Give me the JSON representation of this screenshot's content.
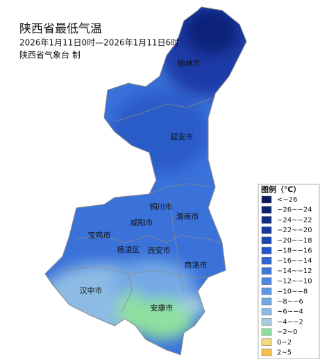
{
  "header": {
    "title": "陕西省最低气温",
    "period": "2026年1月11日0时—2026年1月11日6时",
    "issuer": "陕西省气象台  制"
  },
  "cities": [
    {
      "label": "榆林市"
    },
    {
      "label": "延安市"
    },
    {
      "label": "铜川市"
    },
    {
      "label": "咸阳市"
    },
    {
      "label": "渭南市"
    },
    {
      "label": "宝鸡市"
    },
    {
      "label": "杨凌区"
    },
    {
      "label": "西安市"
    },
    {
      "label": "商洛市"
    },
    {
      "label": "汉中市"
    },
    {
      "label": "安康市"
    }
  ],
  "legend": {
    "title": "图例（℃）",
    "items": [
      {
        "label": "<−26",
        "color": "#0a1a5c"
      },
      {
        "label": "−26~−24",
        "color": "#0d2270"
      },
      {
        "label": "−24~−22",
        "color": "#112c88"
      },
      {
        "label": "−22~−20",
        "color": "#15389f"
      },
      {
        "label": "−20~−18",
        "color": "#1a46b5"
      },
      {
        "label": "−18~−16",
        "color": "#2255c6"
      },
      {
        "label": "−16~−14",
        "color": "#2e66d1"
      },
      {
        "label": "−14~−12",
        "color": "#3c78dc"
      },
      {
        "label": "−12~−10",
        "color": "#4a88e4"
      },
      {
        "label": "−10~−8",
        "color": "#5c98e6"
      },
      {
        "label": "−8~−6",
        "color": "#74a9e6"
      },
      {
        "label": "−6~−4",
        "color": "#8dbbe4"
      },
      {
        "label": "−4~−2",
        "color": "#a5cfe0"
      },
      {
        "label": "−2~0",
        "color": "#8fe0a0"
      },
      {
        "label": "0~2",
        "color": "#f3dc7c"
      },
      {
        "label": "2~5",
        "color": "#f2c04a"
      }
    ]
  }
}
